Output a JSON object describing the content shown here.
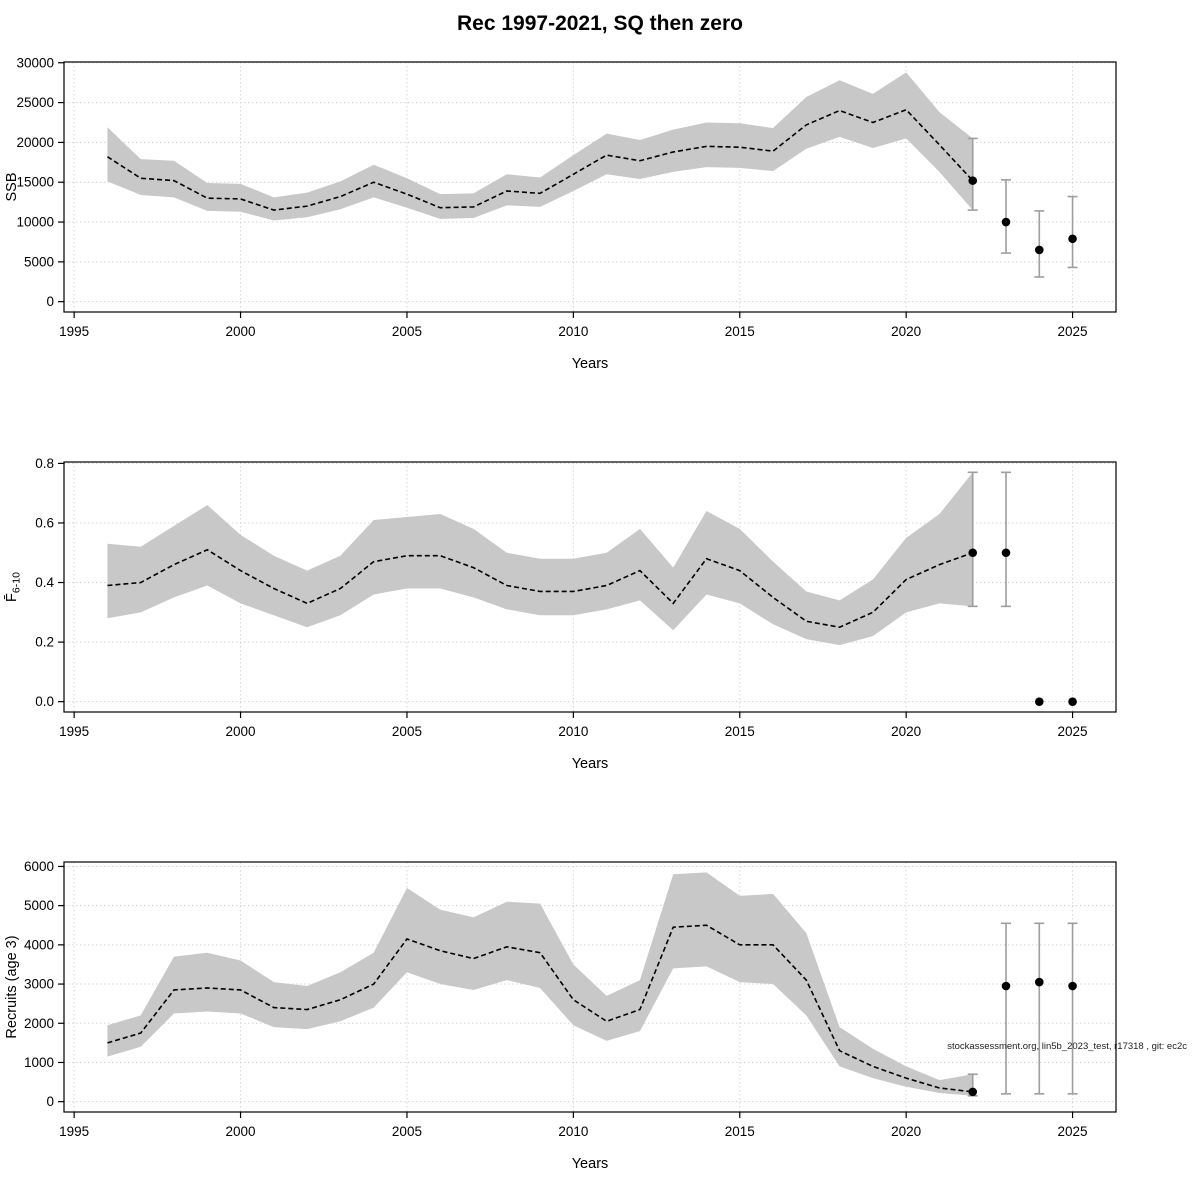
{
  "page": {
    "title": "Rec 1997-2021, SQ then zero",
    "watermark": "stockassessment.org, lin5b_2023_test, r17318 , git: ec2c"
  },
  "theme": {
    "band_color": "#c8c8c8",
    "line_color": "#000000",
    "point_color": "#000000",
    "errorbar_color": "#9e9e9e",
    "grid_color": "#d4d4d4",
    "box_color": "#000000"
  },
  "chart_data": [
    {
      "type": "line",
      "panel": "ssb",
      "title": "",
      "xlabel": "Years",
      "ylabel": "SSB",
      "ylabel_sub": "",
      "xlim": [
        1995,
        2026
      ],
      "ylim": [
        0,
        30000
      ],
      "grid": true,
      "xticks": [
        1995,
        2000,
        2005,
        2010,
        2015,
        2020,
        2025
      ],
      "xtick_labels": [
        "1995",
        "2000",
        "2005",
        "2010",
        "2015",
        "2020",
        "2025"
      ],
      "yticks": [
        0,
        5000,
        10000,
        15000,
        20000,
        25000,
        30000
      ],
      "ytick_labels": [
        "0",
        "5000",
        "10000",
        "15000",
        "20000",
        "25000",
        "30000"
      ],
      "x": [
        1996,
        1997,
        1998,
        1999,
        2000,
        2001,
        2002,
        2003,
        2004,
        2005,
        2006,
        2007,
        2008,
        2009,
        2010,
        2011,
        2012,
        2013,
        2014,
        2015,
        2016,
        2017,
        2018,
        2019,
        2020,
        2021,
        2022
      ],
      "median": [
        18200,
        15500,
        15200,
        13000,
        12900,
        11500,
        12000,
        13200,
        15000,
        13500,
        11800,
        11900,
        13900,
        13600,
        16000,
        18400,
        17700,
        18800,
        19500,
        19400,
        18900,
        22200,
        24000,
        22500,
        24100,
        19700,
        15200
      ],
      "lower": [
        15100,
        13400,
        13100,
        11400,
        11300,
        10200,
        10600,
        11600,
        13100,
        11800,
        10400,
        10500,
        12100,
        11900,
        13900,
        16000,
        15400,
        16300,
        16900,
        16800,
        16400,
        19200,
        20700,
        19300,
        20500,
        16300,
        11500
      ],
      "upper": [
        21900,
        17900,
        17700,
        14900,
        14800,
        13100,
        13700,
        15100,
        17200,
        15500,
        13500,
        13600,
        16000,
        15600,
        18400,
        21100,
        20300,
        21600,
        22500,
        22400,
        21800,
        25700,
        27800,
        26100,
        28800,
        23800,
        20500
      ],
      "points": [
        {
          "x": 2022,
          "y": 15200,
          "lo": 11500,
          "hi": 20500
        },
        {
          "x": 2023,
          "y": 10000,
          "lo": 6100,
          "hi": 15300
        },
        {
          "x": 2024,
          "y": 6500,
          "lo": 3100,
          "hi": 11400
        },
        {
          "x": 2025,
          "y": 7900,
          "lo": 4300,
          "hi": 13200
        }
      ]
    },
    {
      "type": "line",
      "panel": "f",
      "title": "",
      "xlabel": "Years",
      "ylabel": "F̄",
      "ylabel_sub": "6-10",
      "xlim": [
        1995,
        2026
      ],
      "ylim": [
        0,
        0.8
      ],
      "grid": true,
      "xticks": [
        1995,
        2000,
        2005,
        2010,
        2015,
        2020,
        2025
      ],
      "xtick_labels": [
        "1995",
        "2000",
        "2005",
        "2010",
        "2015",
        "2020",
        "2025"
      ],
      "yticks": [
        0,
        0.2,
        0.4,
        0.6,
        0.8
      ],
      "ytick_labels": [
        "0.0",
        "0.2",
        "0.4",
        "0.6",
        "0.8"
      ],
      "x": [
        1996,
        1997,
        1998,
        1999,
        2000,
        2001,
        2002,
        2003,
        2004,
        2005,
        2006,
        2007,
        2008,
        2009,
        2010,
        2011,
        2012,
        2013,
        2014,
        2015,
        2016,
        2017,
        2018,
        2019,
        2020,
        2021,
        2022
      ],
      "median": [
        0.39,
        0.4,
        0.46,
        0.51,
        0.44,
        0.38,
        0.33,
        0.38,
        0.47,
        0.49,
        0.49,
        0.45,
        0.39,
        0.37,
        0.37,
        0.39,
        0.44,
        0.33,
        0.48,
        0.44,
        0.35,
        0.27,
        0.25,
        0.3,
        0.41,
        0.46,
        0.5
      ],
      "lower": [
        0.28,
        0.3,
        0.35,
        0.39,
        0.33,
        0.29,
        0.25,
        0.29,
        0.36,
        0.38,
        0.38,
        0.35,
        0.31,
        0.29,
        0.29,
        0.31,
        0.34,
        0.24,
        0.36,
        0.33,
        0.26,
        0.21,
        0.19,
        0.22,
        0.3,
        0.33,
        0.32
      ],
      "upper": [
        0.53,
        0.52,
        0.59,
        0.66,
        0.56,
        0.49,
        0.44,
        0.49,
        0.61,
        0.62,
        0.63,
        0.58,
        0.5,
        0.48,
        0.48,
        0.5,
        0.58,
        0.45,
        0.64,
        0.58,
        0.47,
        0.37,
        0.34,
        0.41,
        0.55,
        0.63,
        0.77
      ],
      "points": [
        {
          "x": 2022,
          "y": 0.5,
          "lo": 0.32,
          "hi": 0.77
        },
        {
          "x": 2023,
          "y": 0.5,
          "lo": 0.32,
          "hi": 0.77
        },
        {
          "x": 2024,
          "y": 0.0,
          "lo": null,
          "hi": null
        },
        {
          "x": 2025,
          "y": 0.0,
          "lo": null,
          "hi": null
        }
      ]
    },
    {
      "type": "line",
      "panel": "rec",
      "title": "",
      "xlabel": "Years",
      "ylabel": "Recruits (age 3)",
      "ylabel_sub": "",
      "xlim": [
        1995,
        2026
      ],
      "ylim": [
        0,
        6000
      ],
      "grid": true,
      "xticks": [
        1995,
        2000,
        2005,
        2010,
        2015,
        2020,
        2025
      ],
      "xtick_labels": [
        "1995",
        "2000",
        "2005",
        "2010",
        "2015",
        "2020",
        "2025"
      ],
      "yticks": [
        0,
        1000,
        2000,
        3000,
        4000,
        5000,
        6000
      ],
      "ytick_labels": [
        "0",
        "1000",
        "2000",
        "3000",
        "4000",
        "5000",
        "6000"
      ],
      "x": [
        1996,
        1997,
        1998,
        1999,
        2000,
        2001,
        2002,
        2003,
        2004,
        2005,
        2006,
        2007,
        2008,
        2009,
        2010,
        2011,
        2012,
        2013,
        2014,
        2015,
        2016,
        2017,
        2018,
        2019,
        2020,
        2021,
        2022
      ],
      "median": [
        1500,
        1750,
        2850,
        2900,
        2850,
        2400,
        2350,
        2600,
        3000,
        4150,
        3850,
        3650,
        3950,
        3800,
        2600,
        2050,
        2350,
        4450,
        4500,
        4000,
        4000,
        3100,
        1300,
        900,
        600,
        350,
        250
      ],
      "lower": [
        1150,
        1400,
        2250,
        2300,
        2250,
        1900,
        1850,
        2050,
        2400,
        3300,
        3000,
        2850,
        3100,
        2900,
        1950,
        1550,
        1800,
        3400,
        3450,
        3050,
        3000,
        2200,
        900,
        600,
        380,
        220,
        150
      ],
      "upper": [
        1950,
        2200,
        3700,
        3800,
        3600,
        3050,
        2950,
        3300,
        3800,
        5450,
        4900,
        4700,
        5100,
        5050,
        3500,
        2700,
        3100,
        5800,
        5850,
        5250,
        5300,
        4300,
        1900,
        1350,
        900,
        550,
        700
      ],
      "points": [
        {
          "x": 2022,
          "y": 250,
          "lo": 150,
          "hi": 700
        },
        {
          "x": 2023,
          "y": 2950,
          "lo": 200,
          "hi": 4550
        },
        {
          "x": 2024,
          "y": 3050,
          "lo": 200,
          "hi": 4550
        },
        {
          "x": 2025,
          "y": 2950,
          "lo": 200,
          "hi": 4550
        }
      ]
    }
  ]
}
